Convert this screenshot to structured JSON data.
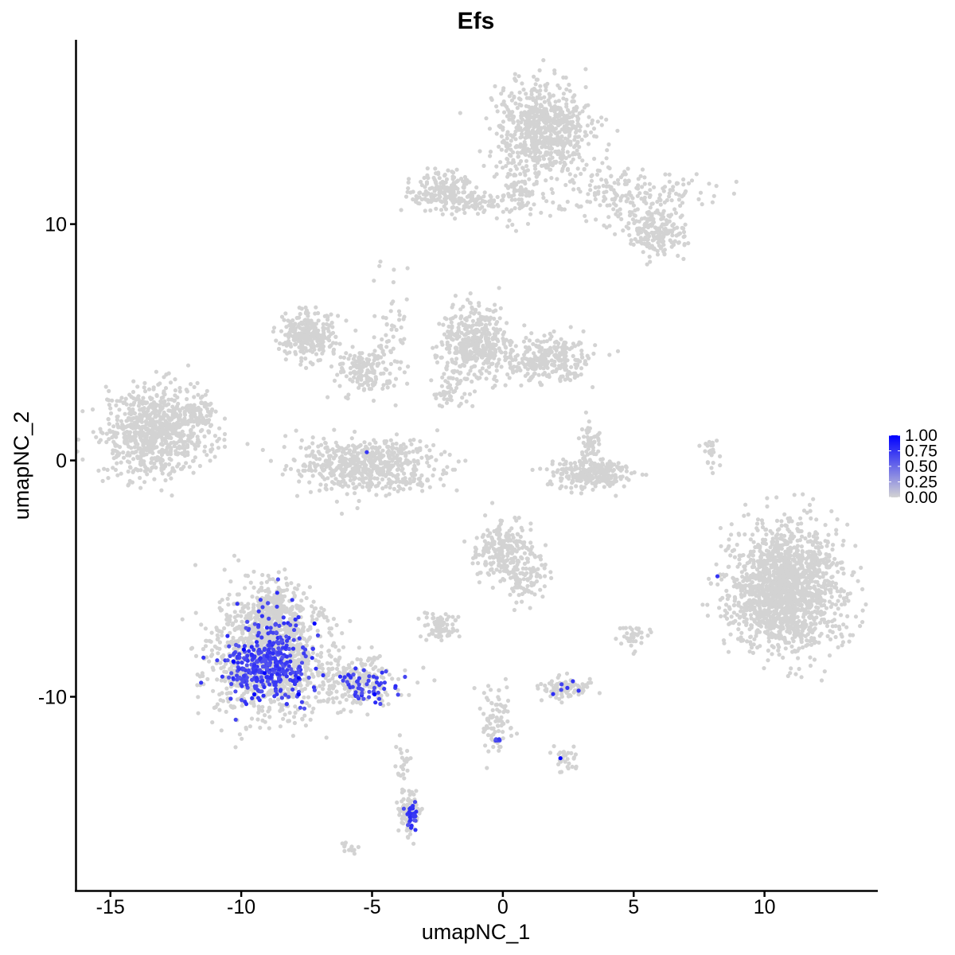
{
  "chart_data": {
    "type": "scatter",
    "title": "Efs",
    "xlabel": "umapNC_1",
    "ylabel": "umapNC_2",
    "xlim": [
      -16.3,
      14.3
    ],
    "ylim": [
      -18.2,
      17.8
    ],
    "xticks": [
      -15,
      -10,
      -5,
      0,
      5,
      10
    ],
    "xtick_labels": [
      "-15",
      "-10",
      "-5",
      "0",
      "5",
      "10"
    ],
    "yticks": [
      -10,
      0,
      10
    ],
    "ytick_labels": [
      "-10",
      "0",
      "10"
    ],
    "grid": false,
    "legend": {
      "type": "colorbar",
      "position": "right",
      "range": [
        0,
        1
      ],
      "ticks": [
        1.0,
        0.75,
        0.5,
        0.25,
        0.0
      ],
      "tick_labels": [
        "1.00",
        "0.75",
        "0.50",
        "0.25",
        "0.00"
      ],
      "low_color": "#d3d3d3",
      "high_color": "#0000ff"
    },
    "clusters": [
      {
        "cx": 1.5,
        "cy": 14.0,
        "sx": 0.9,
        "sy": 1.0,
        "n": 700,
        "value": 0
      },
      {
        "cx": 4.8,
        "cy": 11.2,
        "sx": 1.4,
        "sy": 0.7,
        "n": 200,
        "value": 0
      },
      {
        "cx": 5.9,
        "cy": 9.6,
        "sx": 0.6,
        "sy": 0.45,
        "n": 180,
        "value": 0
      },
      {
        "cx": -2.3,
        "cy": 11.4,
        "sx": 0.6,
        "sy": 0.4,
        "n": 200,
        "value": 0
      },
      {
        "cx": -0.6,
        "cy": 11.0,
        "sx": 0.8,
        "sy": 0.25,
        "n": 60,
        "value": 0
      },
      {
        "cx": 0.6,
        "cy": 11.3,
        "sx": 0.4,
        "sy": 0.6,
        "n": 70,
        "value": 0
      },
      {
        "cx": -13.3,
        "cy": 1.2,
        "sx": 1.0,
        "sy": 0.85,
        "n": 800,
        "value": 0
      },
      {
        "cx": -11.8,
        "cy": 2.0,
        "sx": 0.5,
        "sy": 0.4,
        "n": 70,
        "value": 0
      },
      {
        "cx": -7.4,
        "cy": 5.3,
        "sx": 0.55,
        "sy": 0.5,
        "n": 280,
        "value": 0
      },
      {
        "cx": -5.3,
        "cy": 3.8,
        "sx": 0.5,
        "sy": 0.5,
        "n": 130,
        "value": 0
      },
      {
        "cx": -5.2,
        "cy": -0.2,
        "sx": 1.3,
        "sy": 0.55,
        "n": 600,
        "value": 0
      },
      {
        "cx": -4.3,
        "cy": 5.0,
        "sx": 0.4,
        "sy": 1.6,
        "n": 60,
        "value": 0
      },
      {
        "cx": -1.1,
        "cy": 5.0,
        "sx": 0.6,
        "sy": 0.75,
        "n": 400,
        "value": 0
      },
      {
        "cx": 1.6,
        "cy": 4.2,
        "sx": 0.9,
        "sy": 0.5,
        "n": 280,
        "value": 0
      },
      {
        "cx": -1.9,
        "cy": 3.0,
        "sx": 0.4,
        "sy": 0.5,
        "n": 60,
        "value": 0
      },
      {
        "cx": 3.3,
        "cy": -0.6,
        "sx": 0.8,
        "sy": 0.35,
        "n": 260,
        "value": 0
      },
      {
        "cx": 3.3,
        "cy": 0.8,
        "sx": 0.2,
        "sy": 0.5,
        "n": 50,
        "value": 0
      },
      {
        "cx": 10.8,
        "cy": -5.4,
        "sx": 1.05,
        "sy": 1.3,
        "n": 1600,
        "value": 0
      },
      {
        "cx": 8.0,
        "cy": 0.3,
        "sx": 0.15,
        "sy": 0.35,
        "n": 25,
        "value": 0
      },
      {
        "cx": 0.0,
        "cy": -3.8,
        "sx": 0.55,
        "sy": 0.6,
        "n": 230,
        "value": 0
      },
      {
        "cx": 0.9,
        "cy": -5.0,
        "sx": 0.4,
        "sy": 0.5,
        "n": 90,
        "value": 0
      },
      {
        "cx": -2.4,
        "cy": -7.0,
        "sx": 0.35,
        "sy": 0.25,
        "n": 80,
        "value": 0
      },
      {
        "cx": 2.3,
        "cy": -9.6,
        "sx": 0.5,
        "sy": 0.2,
        "n": 90,
        "value": 0
      },
      {
        "cx": 5.0,
        "cy": -7.4,
        "sx": 0.3,
        "sy": 0.25,
        "n": 35,
        "value": 0
      },
      {
        "cx": -0.3,
        "cy": -11.0,
        "sx": 0.3,
        "sy": 0.8,
        "n": 80,
        "value": 0
      },
      {
        "cx": 2.3,
        "cy": -12.6,
        "sx": 0.3,
        "sy": 0.25,
        "n": 30,
        "value": 0
      },
      {
        "cx": -3.6,
        "cy": -14.9,
        "sx": 0.2,
        "sy": 0.55,
        "n": 70,
        "value": 0
      },
      {
        "cx": -5.9,
        "cy": -16.4,
        "sx": 0.15,
        "sy": 0.12,
        "n": 12,
        "value": 0
      },
      {
        "cx": -3.8,
        "cy": -12.8,
        "sx": 0.15,
        "sy": 0.6,
        "n": 25,
        "value": 0
      },
      {
        "cx": -9.0,
        "cy": -8.2,
        "sx": 1.1,
        "sy": 1.4,
        "n": 1100,
        "value": 0
      },
      {
        "cx": -8.7,
        "cy": -6.3,
        "sx": 0.5,
        "sy": 0.6,
        "n": 160,
        "value": 0
      },
      {
        "cx": -5.5,
        "cy": -9.3,
        "sx": 0.8,
        "sy": 0.5,
        "n": 220,
        "value": 0
      },
      {
        "cx": -9.0,
        "cy": -8.7,
        "sx": 0.8,
        "sy": 0.7,
        "n": 320,
        "value": 0.7
      },
      {
        "cx": -8.5,
        "cy": -7.2,
        "sx": 0.5,
        "sy": 0.8,
        "n": 40,
        "value": 0.7
      },
      {
        "cx": -5.3,
        "cy": -9.5,
        "sx": 0.7,
        "sy": 0.45,
        "n": 55,
        "value": 0.7
      },
      {
        "cx": -3.5,
        "cy": -15.1,
        "sx": 0.12,
        "sy": 0.3,
        "n": 28,
        "value": 0.7
      },
      {
        "cx": -0.3,
        "cy": -11.9,
        "sx": 0.1,
        "sy": 0.08,
        "n": 5,
        "value": 0.7
      },
      {
        "cx": 2.5,
        "cy": -9.6,
        "sx": 0.4,
        "sy": 0.15,
        "n": 6,
        "value": 0.7
      }
    ],
    "points": [
      {
        "x": -5.2,
        "y": 0.35,
        "value": 0.75
      },
      {
        "x": 8.2,
        "y": -4.9,
        "value": 0.75
      },
      {
        "x": -7.2,
        "y": -6.9,
        "value": 1.0
      },
      {
        "x": -10.3,
        "y": -8.5,
        "value": 1.0
      },
      {
        "x": -9.5,
        "y": -9.9,
        "value": 1.0
      },
      {
        "x": -9.1,
        "y": -9.0,
        "value": 1.0
      },
      {
        "x": -7.8,
        "y": -9.9,
        "value": 1.0
      },
      {
        "x": -9.9,
        "y": -8.0,
        "value": 1.0
      },
      {
        "x": -4.9,
        "y": -9.9,
        "value": 1.0
      },
      {
        "x": 2.2,
        "y": -12.6,
        "value": 1.0
      },
      {
        "x": -7.8,
        "y": -9.2,
        "value": 1.0
      }
    ]
  }
}
